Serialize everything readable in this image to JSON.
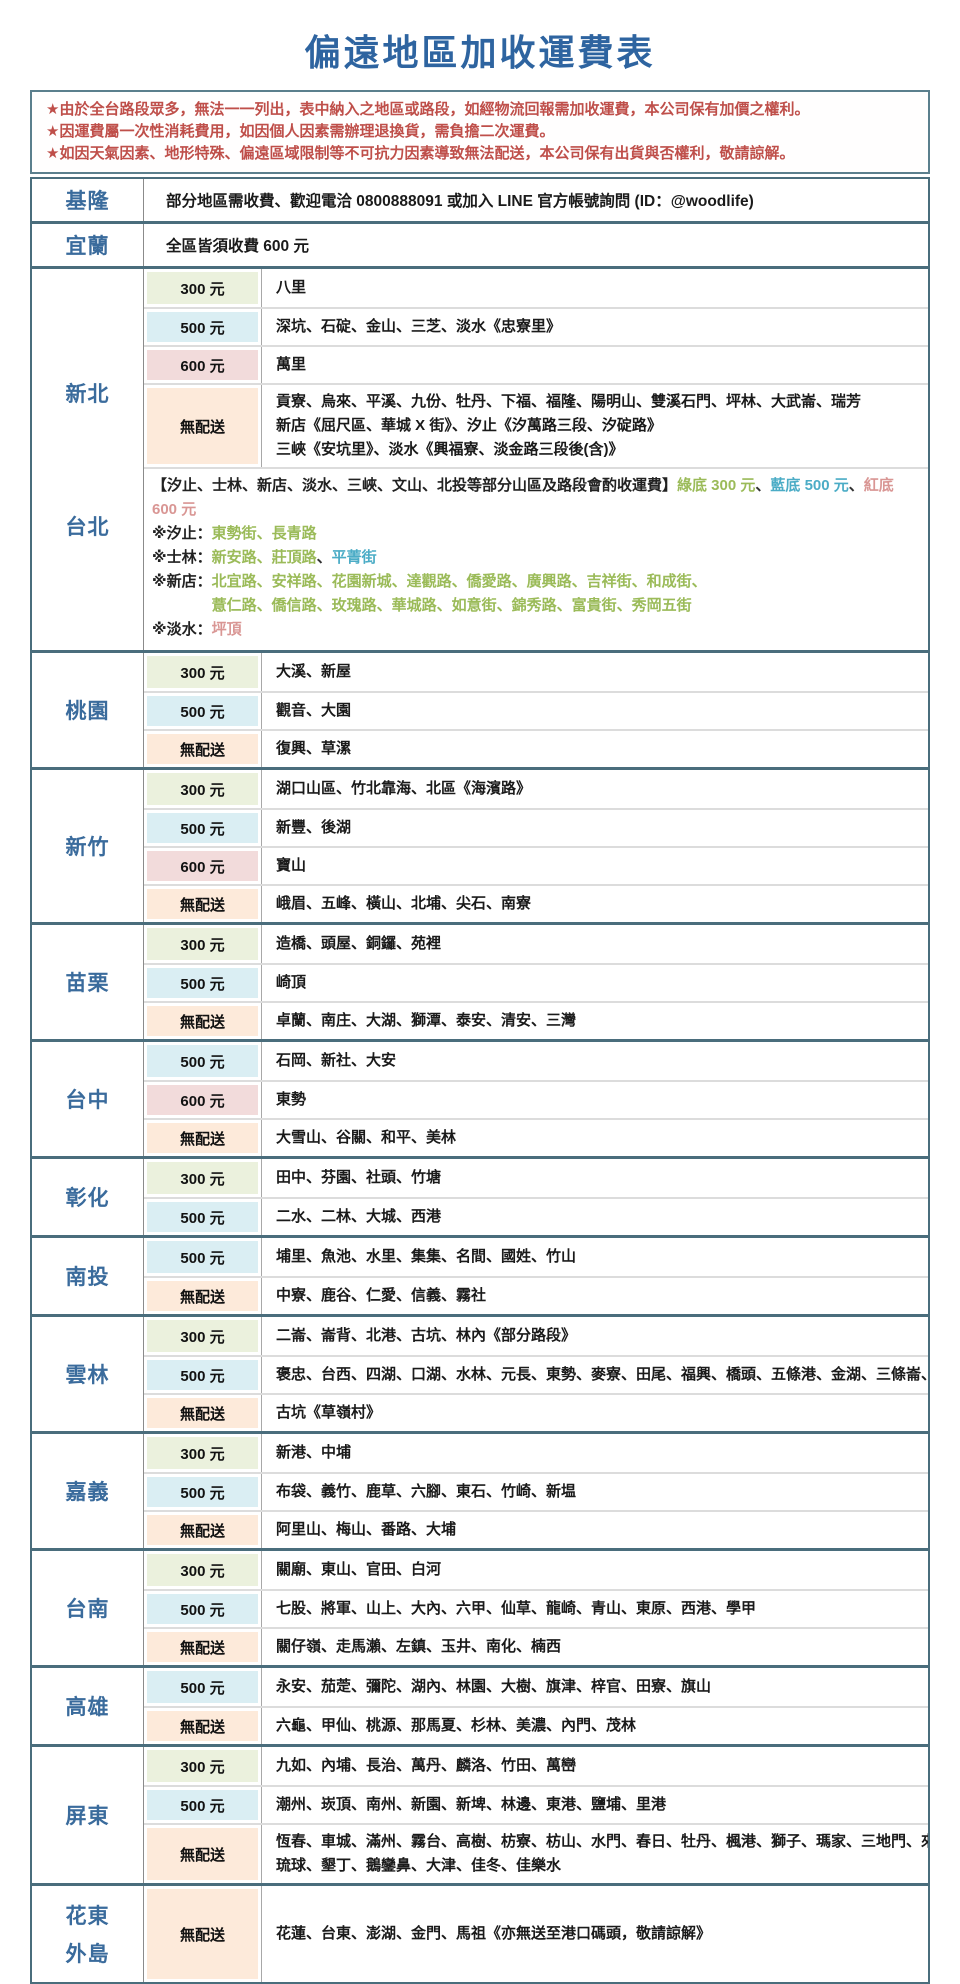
{
  "title": "偏遠地區加收運費表",
  "notices": [
    "★由於全台路段眾多，無法一一列出，表中納入之地區或路段，如經物流回報需加收運費，本公司保有加價之權利。",
    "★因運費屬一次性消耗費用，如因個人因素需辦理退換貨，需負擔二次運費。",
    "★如因天氣因素、地形特殊、偏遠區域限制等不可抗力因素導致無法配送，本公司保有出貨與否權利，敬請諒解。"
  ],
  "colors": {
    "title_blue": "#2e64a0",
    "region_blue": "#3a6b9c",
    "notice_red": "#bf4f4a",
    "tier_300_bg": "#ebf1dd",
    "tier_500_bg": "#daeef3",
    "tier_600_bg": "#f2dbdb",
    "tier_none_bg": "#fdeada",
    "note_green": "#9bbb59",
    "note_blue": "#4bacc6",
    "note_red": "#d99694"
  },
  "regions": [
    {
      "label": [
        "基隆"
      ],
      "rows": [
        {
          "type": "info",
          "text": "部分地區需收費、歡迎電洽 0800888091 或加入 LINE 官方帳號詢問 (ID：@woodlife)"
        }
      ]
    },
    {
      "label": [
        "宜蘭"
      ],
      "rows": [
        {
          "type": "info",
          "text": "全區皆須收費 600 元"
        }
      ]
    },
    {
      "label": [
        "新北",
        "台北"
      ],
      "rows": [
        {
          "type": "fee",
          "tier": "300",
          "fee": "300 元",
          "areas": [
            "八里"
          ]
        },
        {
          "type": "fee",
          "tier": "500",
          "fee": "500 元",
          "areas": [
            "深坑、石碇、金山、三芝、淡水《忠寮里》"
          ]
        },
        {
          "type": "fee",
          "tier": "600",
          "fee": "600 元",
          "areas": [
            "萬里"
          ]
        },
        {
          "type": "fee",
          "tier": "none",
          "fee": "無配送",
          "areas": [
            "貢寮、烏來、平溪、九份、牡丹、下福、福隆、陽明山、雙溪石門、坪林、大武崙、瑞芳",
            "新店《屈尺區、華城 X 街》、汐止《汐萬路三段、汐碇路》",
            "三峽《安坑里》、淡水《興福寮、淡金路三段後(含)》"
          ]
        },
        {
          "type": "note",
          "header": "【汐止、士林、新店、淡水、三峽、文山、北投等部分山區及路段會酌收運費】",
          "legend": [
            {
              "text": "綠底 300 元",
              "tier": "green"
            },
            {
              "text": "藍底 500 元",
              "tier": "blue"
            },
            {
              "text": "紅底 600 元",
              "tier": "red"
            }
          ],
          "lines": [
            {
              "prefix": "※汐止：",
              "rows": [
                [
                  {
                    "text": "東勢街、長青路",
                    "tier": "green"
                  }
                ]
              ]
            },
            {
              "prefix": "※士林：",
              "rows": [
                [
                  {
                    "text": "新安路、莊頂路",
                    "tier": "green"
                  },
                  {
                    "text": "、",
                    "tier": "plain"
                  },
                  {
                    "text": "平菁街",
                    "tier": "blue"
                  }
                ]
              ]
            },
            {
              "prefix": "※新店：",
              "rows": [
                [
                  {
                    "text": "北宜路、安祥路、花園新城、達觀路、僑愛路、廣興路、吉祥街、和成街、",
                    "tier": "green"
                  }
                ],
                [
                  {
                    "text": "薏仁路、僑信路、玫瑰路、華城路、如意街、錦秀路、富貴街、秀岡五街",
                    "tier": "green"
                  }
                ]
              ]
            },
            {
              "prefix": "※淡水：",
              "rows": [
                [
                  {
                    "text": "坪頂",
                    "tier": "red"
                  }
                ]
              ]
            }
          ]
        }
      ]
    },
    {
      "label": [
        "桃園"
      ],
      "rows": [
        {
          "type": "fee",
          "tier": "300",
          "fee": "300 元",
          "areas": [
            "大溪、新屋"
          ]
        },
        {
          "type": "fee",
          "tier": "500",
          "fee": "500 元",
          "areas": [
            "觀音、大園"
          ]
        },
        {
          "type": "fee",
          "tier": "none",
          "fee": "無配送",
          "areas": [
            "復興、草漯"
          ]
        }
      ]
    },
    {
      "label": [
        "新竹"
      ],
      "rows": [
        {
          "type": "fee",
          "tier": "300",
          "fee": "300 元",
          "areas": [
            "湖口山區、竹北靠海、北區《海濱路》"
          ]
        },
        {
          "type": "fee",
          "tier": "500",
          "fee": "500 元",
          "areas": [
            "新豐、後湖"
          ]
        },
        {
          "type": "fee",
          "tier": "600",
          "fee": "600 元",
          "areas": [
            "寶山"
          ]
        },
        {
          "type": "fee",
          "tier": "none",
          "fee": "無配送",
          "areas": [
            "峨眉、五峰、橫山、北埔、尖石、南寮"
          ]
        }
      ]
    },
    {
      "label": [
        "苗栗"
      ],
      "rows": [
        {
          "type": "fee",
          "tier": "300",
          "fee": "300 元",
          "areas": [
            "造橋、頭屋、銅鑼、苑裡"
          ]
        },
        {
          "type": "fee",
          "tier": "500",
          "fee": "500 元",
          "areas": [
            "崎頂"
          ]
        },
        {
          "type": "fee",
          "tier": "none",
          "fee": "無配送",
          "areas": [
            "卓蘭、南庄、大湖、獅潭、泰安、清安、三灣"
          ]
        }
      ]
    },
    {
      "label": [
        "台中"
      ],
      "rows": [
        {
          "type": "fee",
          "tier": "500",
          "fee": "500 元",
          "areas": [
            "石岡、新社、大安"
          ]
        },
        {
          "type": "fee",
          "tier": "600",
          "fee": "600 元",
          "areas": [
            "東勢"
          ]
        },
        {
          "type": "fee",
          "tier": "none",
          "fee": "無配送",
          "areas": [
            "大雪山、谷關、和平、美林"
          ]
        }
      ]
    },
    {
      "label": [
        "彰化"
      ],
      "rows": [
        {
          "type": "fee",
          "tier": "300",
          "fee": "300 元",
          "areas": [
            "田中、芬園、社頭、竹塘"
          ]
        },
        {
          "type": "fee",
          "tier": "500",
          "fee": "500 元",
          "areas": [
            "二水、二林、大城、西港"
          ]
        }
      ]
    },
    {
      "label": [
        "南投"
      ],
      "rows": [
        {
          "type": "fee",
          "tier": "500",
          "fee": "500 元",
          "areas": [
            "埔里、魚池、水里、集集、名間、國姓、竹山"
          ]
        },
        {
          "type": "fee",
          "tier": "none",
          "fee": "無配送",
          "areas": [
            "中寮、鹿谷、仁愛、信義、霧社"
          ]
        }
      ]
    },
    {
      "label": [
        "雲林"
      ],
      "rows": [
        {
          "type": "fee",
          "tier": "300",
          "fee": "300 元",
          "areas": [
            "二崙、崙背、北港、古坑、林內《部分路段》"
          ]
        },
        {
          "type": "fee",
          "tier": "500",
          "fee": "500 元",
          "areas": [
            "褒忠、台西、四湖、口湖、水林、元長、東勢、麥寮、田尾、福興、橋頭、五條港、金湖、三條崙、溪底、好收"
          ]
        },
        {
          "type": "fee",
          "tier": "none",
          "fee": "無配送",
          "areas": [
            "古坑《草嶺村》"
          ]
        }
      ]
    },
    {
      "label": [
        "嘉義"
      ],
      "rows": [
        {
          "type": "fee",
          "tier": "300",
          "fee": "300 元",
          "areas": [
            "新港、中埔"
          ]
        },
        {
          "type": "fee",
          "tier": "500",
          "fee": "500 元",
          "areas": [
            "布袋、義竹、鹿草、六腳、東石、竹崎、新塭"
          ]
        },
        {
          "type": "fee",
          "tier": "none",
          "fee": "無配送",
          "areas": [
            "阿里山、梅山、番路、大埔"
          ]
        }
      ]
    },
    {
      "label": [
        "台南"
      ],
      "rows": [
        {
          "type": "fee",
          "tier": "300",
          "fee": "300 元",
          "areas": [
            "關廟、東山、官田、白河"
          ]
        },
        {
          "type": "fee",
          "tier": "500",
          "fee": "500 元",
          "areas": [
            "七股、將軍、山上、大內、六甲、仙草、龍崎、青山、東原、西港、學甲"
          ]
        },
        {
          "type": "fee",
          "tier": "none",
          "fee": "無配送",
          "areas": [
            "關仔嶺、走馬瀨、左鎮、玉井、南化、楠西"
          ]
        }
      ]
    },
    {
      "label": [
        "高雄"
      ],
      "rows": [
        {
          "type": "fee",
          "tier": "500",
          "fee": "500 元",
          "areas": [
            "永安、茄萣、彌陀、湖內、林園、大樹、旗津、梓官、田寮、旗山"
          ]
        },
        {
          "type": "fee",
          "tier": "none",
          "fee": "無配送",
          "areas": [
            "六龜、甲仙、桃源、那馬夏、杉林、美濃、內門、茂林"
          ]
        }
      ]
    },
    {
      "label": [
        "屏東"
      ],
      "rows": [
        {
          "type": "fee",
          "tier": "300",
          "fee": "300 元",
          "areas": [
            "九如、內埔、長治、萬丹、麟洛、竹田、萬巒"
          ]
        },
        {
          "type": "fee",
          "tier": "500",
          "fee": "500 元",
          "areas": [
            "潮州、崁頂、南州、新園、新埤、林邊、東港、鹽埔、里港"
          ]
        },
        {
          "type": "fee",
          "tier": "none",
          "fee": "無配送",
          "areas": [
            "恆春、車城、滿州、霧台、高樹、枋寮、枋山、水門、春日、牡丹、楓港、獅子、瑪家、三地門、來義、泰武、",
            "琉球、墾丁、鵝鑾鼻、大津、佳冬、佳樂水"
          ]
        }
      ]
    },
    {
      "label": [
        "花東",
        "外島"
      ],
      "rows": [
        {
          "type": "fee",
          "tier": "none",
          "fee": "無配送",
          "tall": true,
          "areas": [
            "花蓮、台東、澎湖、金門、馬祖《亦無送至港口碼頭，敬請諒解》"
          ]
        }
      ]
    }
  ]
}
